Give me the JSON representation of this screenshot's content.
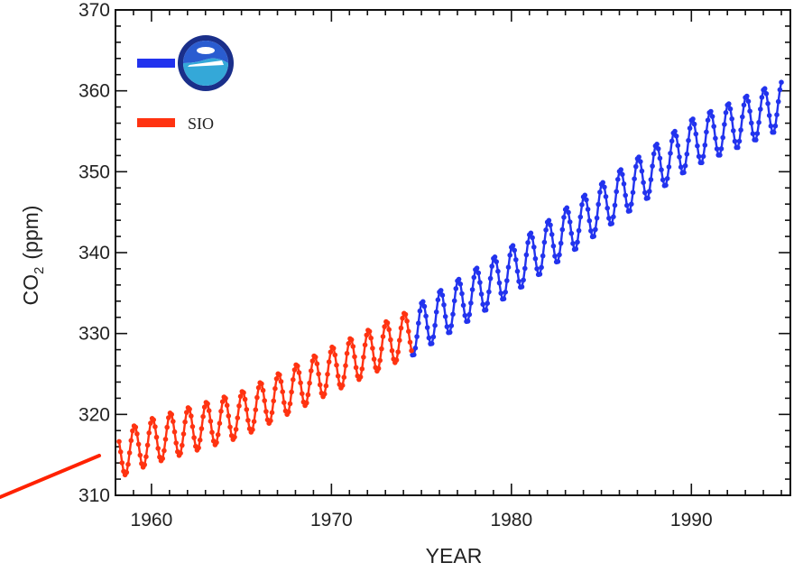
{
  "chart_data": {
    "type": "line",
    "title": "",
    "xlabel": "YEAR",
    "ylabel": "CO2 (ppm)",
    "ylabel_main": "CO",
    "ylabel_sub": "2",
    "ylabel_unit": "(ppm)",
    "xlim": [
      1958,
      1995.5
    ],
    "ylim": [
      310,
      370
    ],
    "xticks": [
      1960,
      1970,
      1980,
      1990
    ],
    "yticks": [
      310,
      320,
      330,
      340,
      350,
      360,
      370
    ],
    "grid": false,
    "legend_position": "top-left",
    "series": [
      {
        "name": "",
        "legend_icon": "noaa-logo-icon",
        "color": "#2233ee",
        "x_start": 1974.5,
        "x_end": 1995,
        "trend_points": [
          [
            1974.5,
            330.2
          ],
          [
            1980,
            337.8
          ],
          [
            1985,
            345.6
          ],
          [
            1990,
            353.5
          ],
          [
            1995,
            358.2
          ]
        ],
        "seasonal_amplitude": 3.0
      },
      {
        "name": "SIO",
        "color": "#ff3311",
        "x_start": 1958.2,
        "x_end": 1974.5,
        "trend_points": [
          [
            1958.2,
            315.0
          ],
          [
            1960,
            316.7
          ],
          [
            1965,
            320.0
          ],
          [
            1970,
            325.5
          ],
          [
            1974.5,
            330.2
          ]
        ],
        "seasonal_amplitude": 2.8
      }
    ],
    "annotation": {
      "type": "line",
      "color": "#ff2200",
      "from": [
        0,
        551
      ],
      "to": [
        110,
        505
      ]
    }
  }
}
